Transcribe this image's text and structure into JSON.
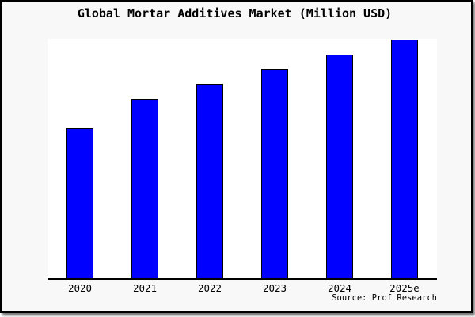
{
  "window": {
    "background": "#f8f8f8",
    "plot_background": "#ffffff",
    "border_color": "#000000",
    "shadow_color": "#8c8c8c"
  },
  "chart_data": {
    "type": "bar",
    "title": "Global Mortar Additives Market (Million USD)",
    "categories": [
      "2020",
      "2021",
      "2022",
      "2023",
      "2024",
      "2025e"
    ],
    "values": [
      189,
      226,
      245,
      264,
      282,
      301
    ],
    "note": "no y-axis or value labels shown; values estimated in relative units from bar pixel heights",
    "ylim": [
      0,
      302
    ],
    "xlabel": "",
    "ylabel": "",
    "grid": false,
    "legend": false,
    "bar_color": "#0000ff",
    "bar_border_color": "#000000",
    "source_label": "Source: Prof Research"
  }
}
